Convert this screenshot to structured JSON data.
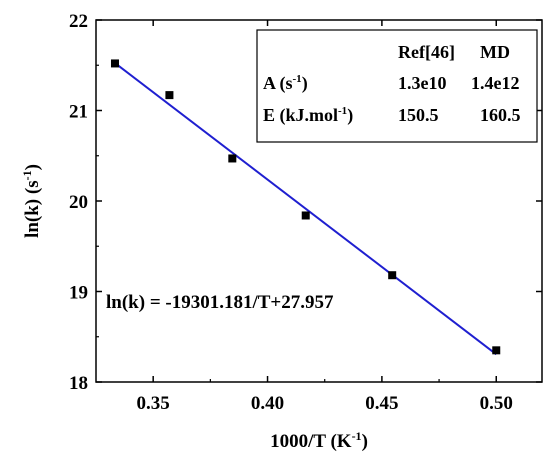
{
  "chart_data": {
    "type": "scatter",
    "xlabel": "1000/T (K",
    "xlabel_sup": "-1",
    "xlabel_close": ")",
    "ylabel": "ln(k) (s",
    "ylabel_sup": "-1",
    "ylabel_close": ")",
    "xlim": [
      0.325,
      0.52
    ],
    "ylim": [
      18,
      22
    ],
    "xticks": [
      0.35,
      0.4,
      0.45,
      0.5
    ],
    "xtick_labels": [
      "0.35",
      "0.40",
      "0.45",
      "0.50"
    ],
    "yticks": [
      18,
      19,
      20,
      21,
      22
    ],
    "ytick_labels": [
      "18",
      "19",
      "20",
      "21",
      "22"
    ],
    "grid": false,
    "series": [
      {
        "marker": "square",
        "color": "#000000",
        "x": [
          0.3333,
          0.3571,
          0.3846,
          0.4167,
          0.4545,
          0.5
        ],
        "y": [
          21.52,
          21.17,
          20.47,
          19.84,
          19.18,
          18.35
        ]
      }
    ],
    "fit": {
      "color": "#1f1fd0",
      "slope": -19.301181,
      "intercept": 27.957,
      "x_range": [
        0.3333,
        0.5
      ],
      "label": "ln(k) = -19301.181/T+27.957"
    },
    "table": {
      "headers": [
        "",
        "Ref[46]",
        "MD"
      ],
      "rows": [
        {
          "label": "A (s",
          "sup": "-1",
          "close": ")",
          "values": [
            "1.3e10",
            "1.4e12"
          ]
        },
        {
          "label": "E (kJ.mol",
          "sup": "-1",
          "close": ")",
          "values": [
            "150.5",
            "160.5"
          ]
        }
      ]
    }
  }
}
